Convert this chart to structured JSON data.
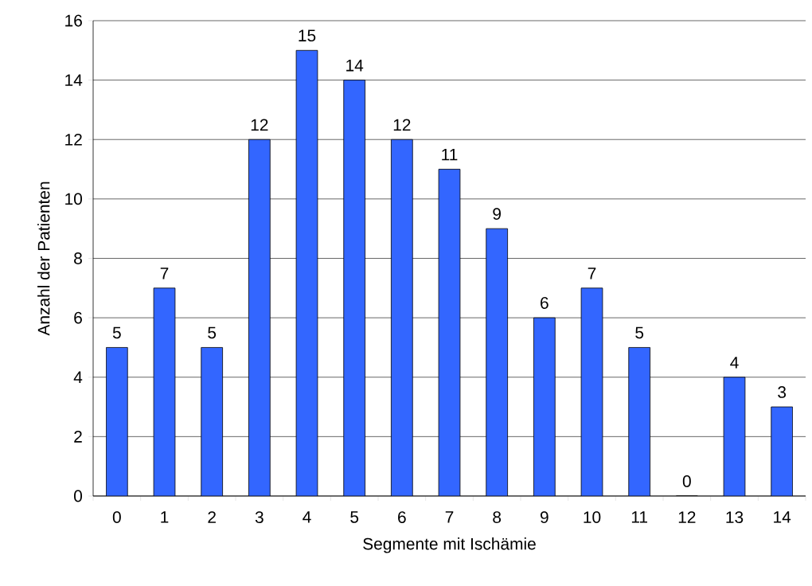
{
  "chart_data": {
    "type": "bar",
    "xlabel": "Segmente mit Ischämie",
    "ylabel": "Anzahl der Patienten",
    "categories": [
      "0",
      "1",
      "2",
      "3",
      "4",
      "5",
      "6",
      "7",
      "8",
      "9",
      "10",
      "11",
      "12",
      "13",
      "14"
    ],
    "values": [
      5,
      7,
      5,
      12,
      15,
      14,
      12,
      11,
      9,
      6,
      7,
      5,
      0,
      4,
      3
    ],
    "color": "#3366ff",
    "ylim": [
      0,
      16
    ],
    "yticks": [
      0,
      2,
      4,
      6,
      8,
      10,
      12,
      14,
      16
    ],
    "grid": "y",
    "data_labels": true
  }
}
